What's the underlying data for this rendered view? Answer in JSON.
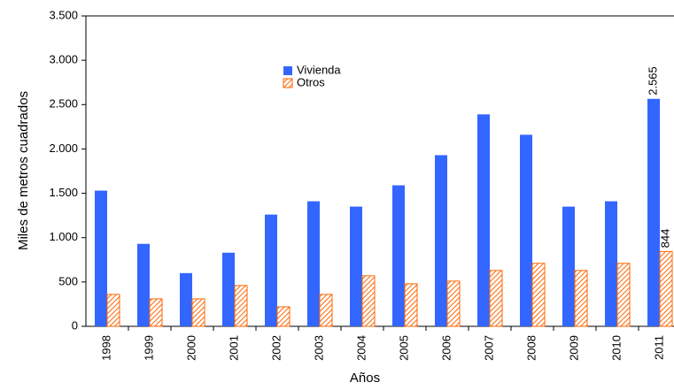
{
  "chart_data": {
    "type": "bar",
    "categories": [
      "1998",
      "1999",
      "2000",
      "2001",
      "2002",
      "2003",
      "2004",
      "2005",
      "2006",
      "2007",
      "2008",
      "2009",
      "2010",
      "2011"
    ],
    "series": [
      {
        "name": "Vivienda",
        "color": "#3366ff",
        "values": [
          1530,
          930,
          600,
          830,
          1260,
          1410,
          1350,
          1590,
          1930,
          2390,
          2160,
          1350,
          1410,
          2565
        ],
        "value_labels": [
          null,
          null,
          null,
          null,
          null,
          null,
          null,
          null,
          null,
          null,
          null,
          null,
          null,
          "2.565"
        ]
      },
      {
        "name": "Otros",
        "color": "#ff6600",
        "hatch": true,
        "values": [
          360,
          310,
          310,
          460,
          220,
          360,
          570,
          480,
          510,
          630,
          710,
          630,
          710,
          844
        ],
        "value_labels": [
          null,
          null,
          null,
          null,
          null,
          null,
          null,
          null,
          null,
          null,
          null,
          null,
          null,
          "844"
        ]
      }
    ],
    "x_label": "Años",
    "y_label": "Miles de metros cuadrados",
    "ylim": [
      0,
      3500
    ],
    "yticks": [
      0,
      500,
      {
        "value": 1000,
        "label": "1.000"
      },
      {
        "value": 1500,
        "label": "1.500"
      },
      {
        "value": 2000,
        "label": "2.000"
      },
      {
        "value": 2500,
        "label": "2.500"
      },
      {
        "value": 3000,
        "label": "3.000"
      },
      {
        "value": 3500,
        "label": "3.500"
      }
    ],
    "grid": false
  }
}
